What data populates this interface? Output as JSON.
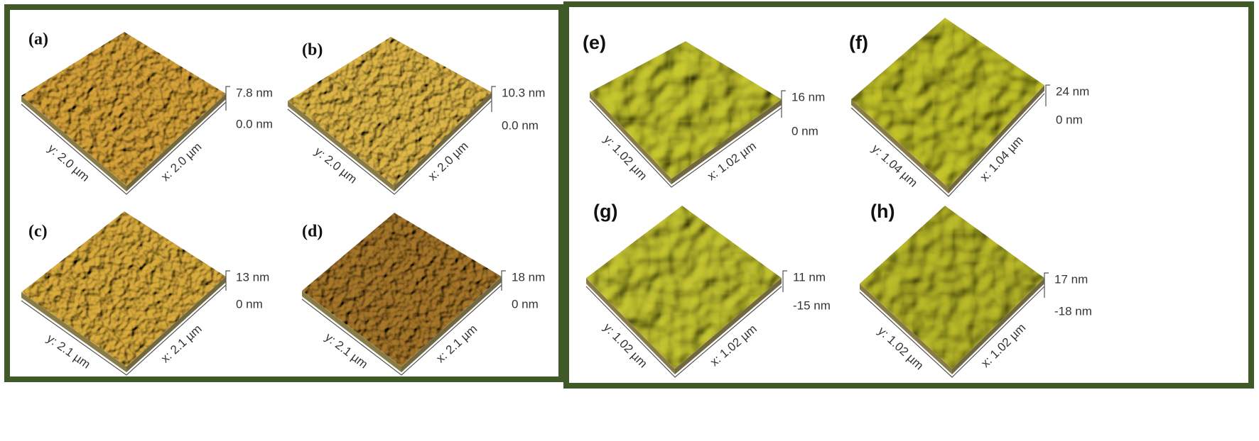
{
  "panels": [
    {
      "label": "(a)",
      "z_max": "7.8 nm",
      "z_min": "0.0 nm",
      "y_axis": "y: 2.0 µm",
      "x_axis": "x: 2.0 µm"
    },
    {
      "label": "(b)",
      "z_max": "10.3 nm",
      "z_min": "0.0 nm",
      "y_axis": "y: 2.0 µm",
      "x_axis": "x: 2.0 µm"
    },
    {
      "label": "(c)",
      "z_max": "13 nm",
      "z_min": "0 nm",
      "y_axis": "y: 2.1 µm",
      "x_axis": "x: 2.1 µm"
    },
    {
      "label": "(d)",
      "z_max": "18 nm",
      "z_min": "0 nm",
      "y_axis": "y: 2.1 µm",
      "x_axis": "x: 2.1 µm"
    },
    {
      "label": "(e)",
      "z_max": "16 nm",
      "z_min": "0 nm",
      "y_axis": "y: 1.02 µm",
      "x_axis": "x: 1.02 µm"
    },
    {
      "label": "(f)",
      "z_max": "24 nm",
      "z_min": "0 nm",
      "y_axis": "y: 1.04 µm",
      "x_axis": "x: 1.04 µm"
    },
    {
      "label": "(g)",
      "z_max": "11 nm",
      "z_min": "-15 nm",
      "y_axis": "y: 1.02 µm",
      "x_axis": "x: 1.02 µm"
    },
    {
      "label": "(h)",
      "z_max": "17 nm",
      "z_min": "-18 nm",
      "y_axis": "y: 1.02 µm",
      "x_axis": "x: 1.02 µm"
    }
  ]
}
